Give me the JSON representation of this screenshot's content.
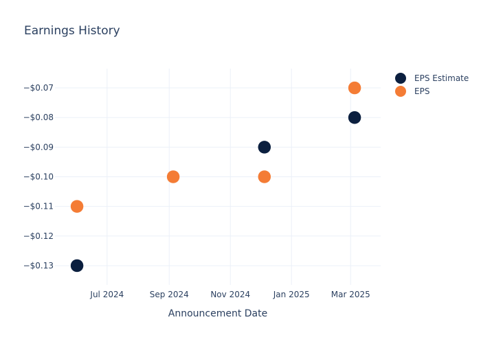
{
  "chart_data": {
    "type": "scatter",
    "title": "Earnings History",
    "xlabel": "Announcement Date",
    "ylabel": "",
    "x_ticks": [
      "Jul 2024",
      "Sep 2024",
      "Nov 2024",
      "Jan 2025",
      "Mar 2025"
    ],
    "y_ticks": [
      "−$0.07",
      "−$0.08",
      "−$0.09",
      "−$0.10",
      "−$0.11",
      "−$0.12",
      "−$0.13"
    ],
    "y_tick_values": [
      -0.07,
      -0.08,
      -0.09,
      -0.1,
      -0.11,
      -0.12,
      -0.13
    ],
    "x_tick_values": [
      "2024-07-01",
      "2024-09-01",
      "2024-11-01",
      "2025-01-01",
      "2025-03-01"
    ],
    "xlim": [
      "2024-05-10",
      "2025-03-31"
    ],
    "ylim": [
      -0.1365,
      -0.0635
    ],
    "grid": true,
    "legend_position": "top-right",
    "series": [
      {
        "name": "EPS Estimate",
        "color": "#0b1f3f",
        "x": [
          "2024-06-01",
          "2024-09-05",
          "2024-12-05",
          "2025-03-05"
        ],
        "values": [
          -0.13,
          -0.1,
          -0.09,
          -0.08
        ]
      },
      {
        "name": "EPS",
        "color": "#f47c35",
        "x": [
          "2024-06-01",
          "2024-09-05",
          "2024-12-05",
          "2025-03-05"
        ],
        "values": [
          -0.11,
          -0.1,
          -0.1,
          -0.07
        ]
      }
    ]
  }
}
